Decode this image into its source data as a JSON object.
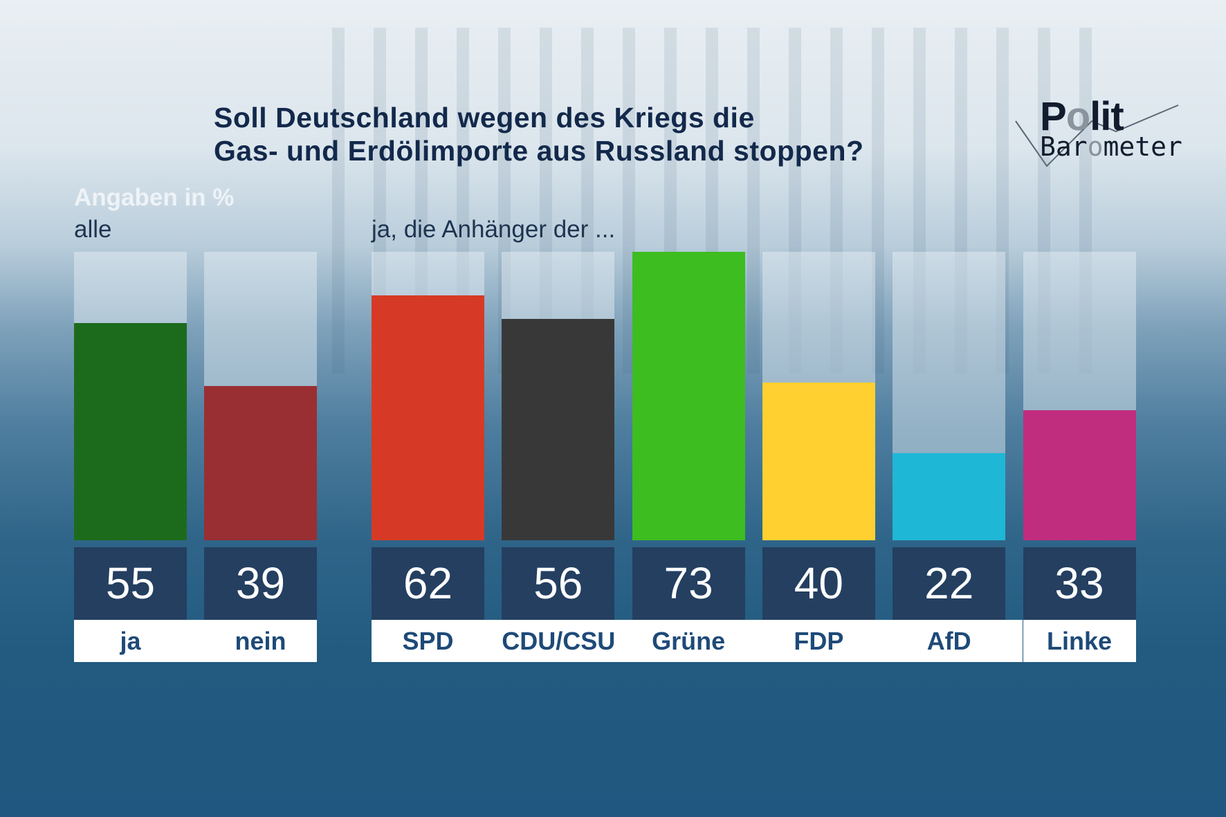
{
  "title_lines": [
    "Soll Deutschland wegen des Kriegs die",
    "Gas- und Erdölimporte aus Russland stoppen?"
  ],
  "logo": {
    "line1": "Polit",
    "line2": "Barometer"
  },
  "chart_data": {
    "type": "bar",
    "title": "Soll Deutschland wegen des Kriegs die Gas- und Erdölimporte aus Russland stoppen?",
    "unit_label": "Angaben in %",
    "ylim": [
      0,
      73
    ],
    "groups": [
      {
        "label": "alle",
        "categories": [
          "ja",
          "nein"
        ],
        "values": [
          55,
          39
        ],
        "colors": [
          "#1c6b1c",
          "#992f32"
        ]
      },
      {
        "label": "ja, die Anhänger der ...",
        "categories": [
          "SPD",
          "CDU/CSU",
          "Grüne",
          "FDP",
          "AfD",
          "Linke"
        ],
        "values": [
          62,
          56,
          73,
          40,
          22,
          33
        ],
        "colors": [
          "#d63a26",
          "#383838",
          "#3dbd20",
          "#ffd030",
          "#1fb7d6",
          "#c02c7e"
        ]
      }
    ]
  }
}
